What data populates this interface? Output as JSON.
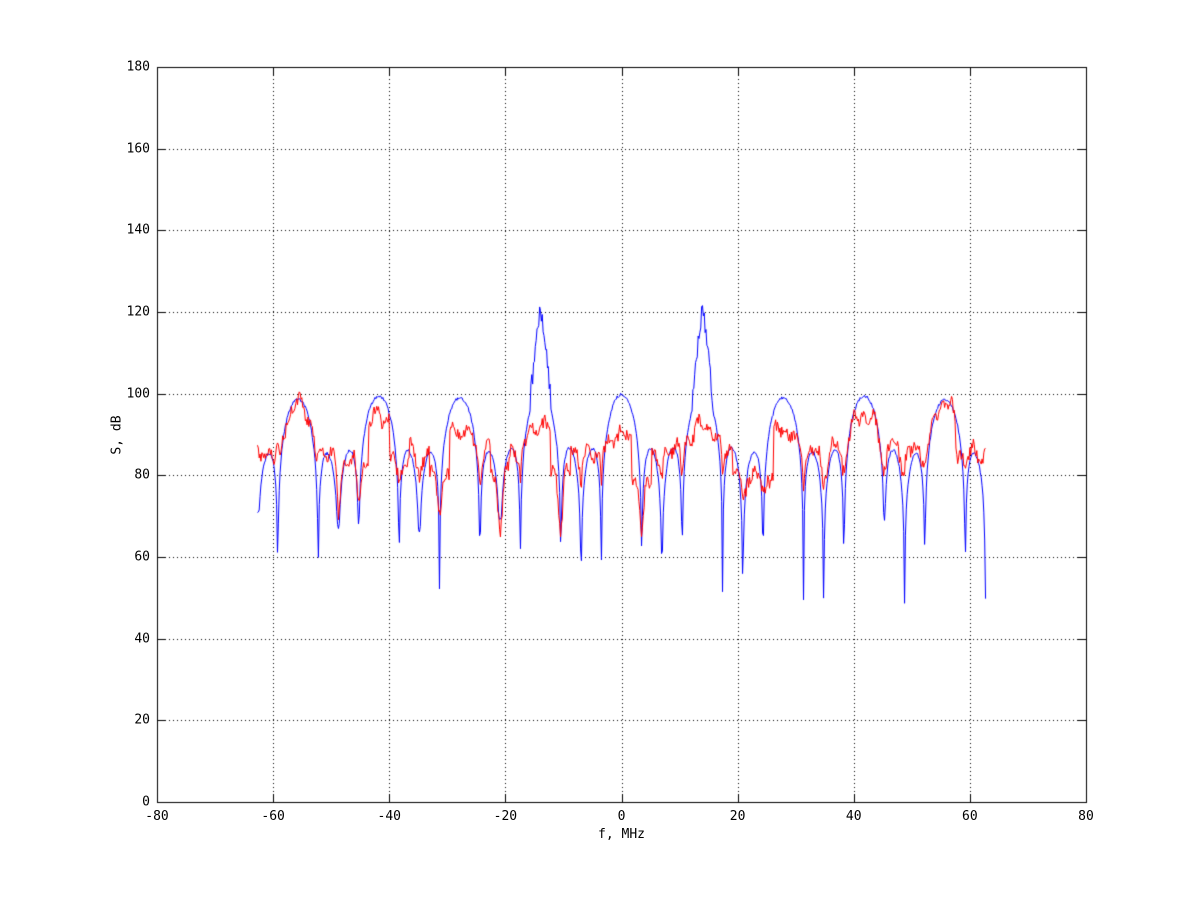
{
  "figure": {
    "background_color": "#ffffff",
    "axis_color": "#000000",
    "grid_style": "dotted"
  },
  "chart_data": {
    "type": "line",
    "title": "",
    "xlabel": "f, MHz",
    "ylabel": "S, dB",
    "xlim": [
      -80,
      80
    ],
    "ylim": [
      0,
      180
    ],
    "xtick_values": [
      -80,
      -60,
      -40,
      -20,
      0,
      20,
      40,
      60,
      80
    ],
    "xtick_labels": [
      "-80",
      "-60",
      "-40",
      "-20",
      "0",
      "20",
      "40",
      "60",
      "80"
    ],
    "ytick_values": [
      0,
      20,
      40,
      60,
      80,
      100,
      120,
      140,
      160,
      180
    ],
    "ytick_labels": [
      "0",
      "20",
      "40",
      "60",
      "80",
      "100",
      "120",
      "140",
      "160",
      "180"
    ],
    "grid": "on",
    "legend": "none",
    "freq_range_mhz": [
      -62.7,
      62.7
    ],
    "lobe_spacing_mhz": 13.93,
    "null_spacing_mhz": 3.4825,
    "sample_step_mhz": 0.15,
    "seed": 7,
    "series": [
      {
        "id": "blue",
        "name": "series-blue",
        "color": "#0000ff",
        "description": "periodic sinc-lobe spectrum, main lobes every 13.93 MHz, tall narrow spikes at +/-13.93 MHz reaching 120.7 dB, sidelobes near 86 dB, nulls dropping to 46-72 dB",
        "lobe_centers_mhz": [
          -55.72,
          -41.79,
          -27.86,
          -13.93,
          0,
          13.93,
          27.86,
          41.79,
          55.72
        ],
        "lobe_peaks_db": [
          98.6,
          99.4,
          99.0,
          100.0,
          99.8,
          100.0,
          99.0,
          99.4,
          98.6
        ],
        "env_scales": [
          1,
          1,
          1,
          1,
          1,
          1,
          1,
          1,
          1
        ],
        "env_floor_rel_db": -60,
        "spikes": [
          {
            "f_mhz": -13.93,
            "peak_db": 120.7,
            "halfwidth_mhz": 1.7
          },
          {
            "f_mhz": 13.93,
            "peak_db": 120.7,
            "halfwidth_mhz": 1.7
          }
        ],
        "sidelobe_level_db": 86,
        "null_floor_db": [
          46,
          72
        ],
        "deep_null_prob": 1.0,
        "noise_db": 0.35,
        "spike_noise_db": 2.2,
        "wander": []
      },
      {
        "id": "red",
        "name": "series-red",
        "color": "#ff0000",
        "description": "noisy measured spectrum 78-98 dB, smooth peaks at outer lobes (97.5 dB at +/-55.7, 95 dB at +/-41.8), about 87-92 dB mid-band, occasional dips to 60-75 dB",
        "lobe_centers_mhz": [
          -55.72,
          -41.79,
          -27.86,
          -13.93,
          0,
          13.93,
          27.86,
          41.79,
          55.72
        ],
        "lobe_peaks_db": [
          97.3,
          94.8,
          91.0,
          92.0,
          90.3,
          92.0,
          91.0,
          94.8,
          97.3
        ],
        "env_scales": [
          0.8,
          0.55,
          0.35,
          0.35,
          0.3,
          0.35,
          0.35,
          0.55,
          0.8
        ],
        "env_floor_rel_db": -13,
        "spikes": [],
        "sidelobe_level_db": 87,
        "null_floor_db": [
          60,
          79
        ],
        "deep_null_prob": 0.35,
        "deep_null_rel_db": [
          -30,
          -15
        ],
        "noise_db": 1.6,
        "spike_noise_db": 0,
        "wander": [
          [
            1.3,
            1.9,
            0.8
          ],
          [
            0.9,
            3.3,
            2.0
          ]
        ]
      }
    ],
    "key_points": {
      "blue_major_peaks": [
        {
          "f": -55.7,
          "S": 98.6
        },
        {
          "f": -41.8,
          "S": 99.4
        },
        {
          "f": -27.9,
          "S": 99.0
        },
        {
          "f": -13.9,
          "S": 120.7
        },
        {
          "f": 0,
          "S": 99.8
        },
        {
          "f": 13.9,
          "S": 120.7
        },
        {
          "f": 27.9,
          "S": 99.0
        },
        {
          "f": 41.8,
          "S": 99.4
        },
        {
          "f": 55.7,
          "S": 98.6
        }
      ],
      "red_major_peaks": [
        {
          "f": -55.7,
          "S": 97.3
        },
        {
          "f": -41.8,
          "S": 94.8
        },
        {
          "f": -27.9,
          "S": 91.0
        },
        {
          "f": -13.9,
          "S": 92.0
        },
        {
          "f": 0,
          "S": 90.3
        },
        {
          "f": 13.9,
          "S": 92.0
        },
        {
          "f": 27.9,
          "S": 91.0
        },
        {
          "f": 41.8,
          "S": 94.8
        },
        {
          "f": 55.7,
          "S": 97.3
        }
      ],
      "blue_deepest_nulls_db": [
        46.5,
        50,
        55
      ],
      "red_typical_band_db": [
        84,
        92
      ]
    }
  }
}
